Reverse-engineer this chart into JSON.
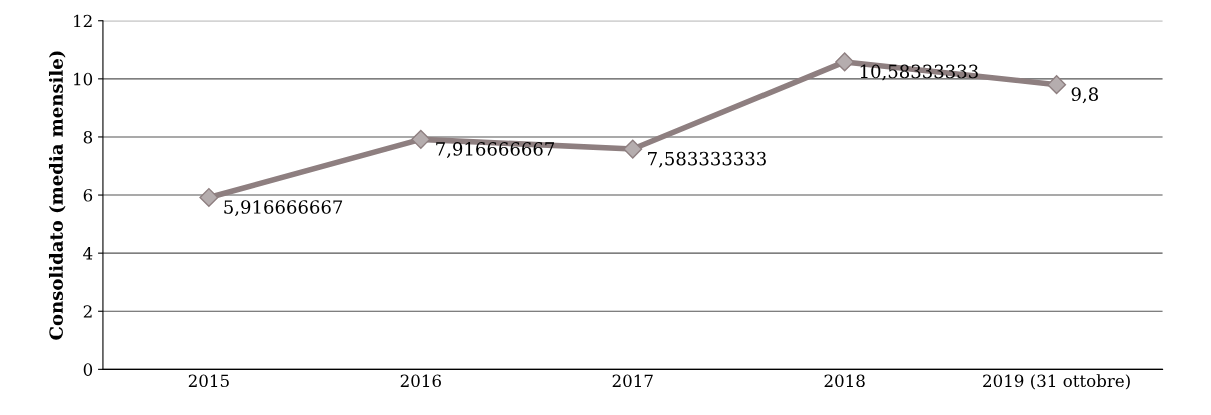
{
  "chart_data": {
    "type": "line",
    "ylabel": "Consolidato (media mensile)",
    "categories": [
      "2015",
      "2016",
      "2017",
      "2018",
      "2019 (31 ottobre)"
    ],
    "series": [
      {
        "color": "#8e7f80",
        "values": [
          5.916666667,
          7.916666667,
          7.583333333,
          10.58333333,
          9.8
        ],
        "value_labels": [
          "5,916666667",
          "7,916666667",
          "7,583333333",
          "10,58333333",
          "9,8"
        ]
      }
    ],
    "ylim": [
      0,
      12
    ],
    "yticks": [
      0,
      2,
      4,
      6,
      8,
      10,
      12
    ],
    "grid": "y",
    "marker": "diamond",
    "line_style": "solid",
    "legend": false
  }
}
